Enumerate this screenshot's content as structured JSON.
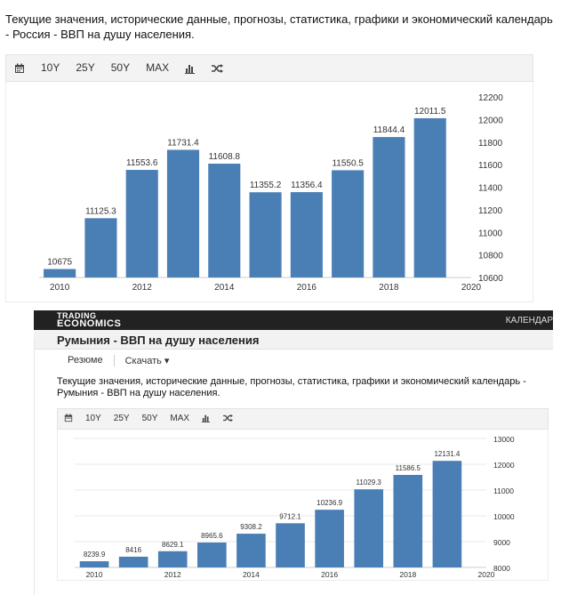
{
  "top": {
    "description": "Текущие значения, исторические данные, прогнозы, статистика, графики и экономический календарь - Россия - ВВП на душу населения.",
    "toolbar": {
      "buttons": [
        "10Y",
        "25Y",
        "50Y",
        "MAX"
      ],
      "icons": [
        "calendar-icon",
        "bar-chart-icon",
        "shuffle-icon"
      ]
    }
  },
  "bottom": {
    "header": {
      "logo_line1": "TRADING",
      "logo_line2": "ECONOMICS",
      "nav": "КАЛЕНДАР"
    },
    "title": "Румыния - ВВП на душу населения",
    "tabs": [
      "Резюме",
      "Скачать ▾"
    ],
    "description": "Текущие значения, исторические данные, прогнозы, статистика, графики и экономический календарь - Румыния - ВВП на душу населения.",
    "toolbar": {
      "buttons": [
        "10Y",
        "25Y",
        "50Y",
        "MAX"
      ],
      "icons": [
        "calendar-icon",
        "bar-chart-icon",
        "shuffle-icon"
      ]
    }
  },
  "colors": {
    "bar": "#4a7fb6",
    "grid": "#e8e8e8",
    "header": "#222222"
  },
  "chart_data": [
    {
      "type": "bar",
      "x": [
        2010,
        2011,
        2012,
        2013,
        2014,
        2015,
        2016,
        2017,
        2018,
        2019
      ],
      "values": [
        10675,
        11125.3,
        11553.6,
        11731.4,
        11608.8,
        11355.2,
        11356.4,
        11550.5,
        11844.4,
        12011.5
      ],
      "labels": [
        "10675",
        "11125.3",
        "11553.6",
        "11731.4",
        "11608.8",
        "11355.2",
        "11356.4",
        "11550.5",
        "11844.4",
        "12011.5"
      ],
      "xticks": [
        2010,
        2012,
        2014,
        2016,
        2018,
        2020
      ],
      "yticks": [
        10600,
        10800,
        11000,
        11200,
        11400,
        11600,
        11800,
        12000,
        12200
      ],
      "ylim": [
        10600,
        12200
      ],
      "xlim": [
        2009.5,
        2020
      ],
      "grid": false,
      "y_axis_side": "right"
    },
    {
      "type": "bar",
      "x": [
        2010,
        2011,
        2012,
        2013,
        2014,
        2015,
        2016,
        2017,
        2018,
        2019
      ],
      "values": [
        8239.9,
        8416,
        8629.1,
        8965.6,
        9308.2,
        9712.1,
        10236.9,
        11029.3,
        11586.5,
        12131.4
      ],
      "labels": [
        "8239.9",
        "8416",
        "8629.1",
        "8965.6",
        "9308.2",
        "9712.1",
        "10236.9",
        "11029.3",
        "11586.5",
        "12131.4"
      ],
      "xticks": [
        2010,
        2012,
        2014,
        2016,
        2018,
        2020
      ],
      "yticks": [
        8000,
        9000,
        10000,
        11000,
        12000,
        13000
      ],
      "ylim": [
        8000,
        13000
      ],
      "xlim": [
        2009.5,
        2020
      ],
      "grid": true,
      "y_axis_side": "right"
    }
  ]
}
